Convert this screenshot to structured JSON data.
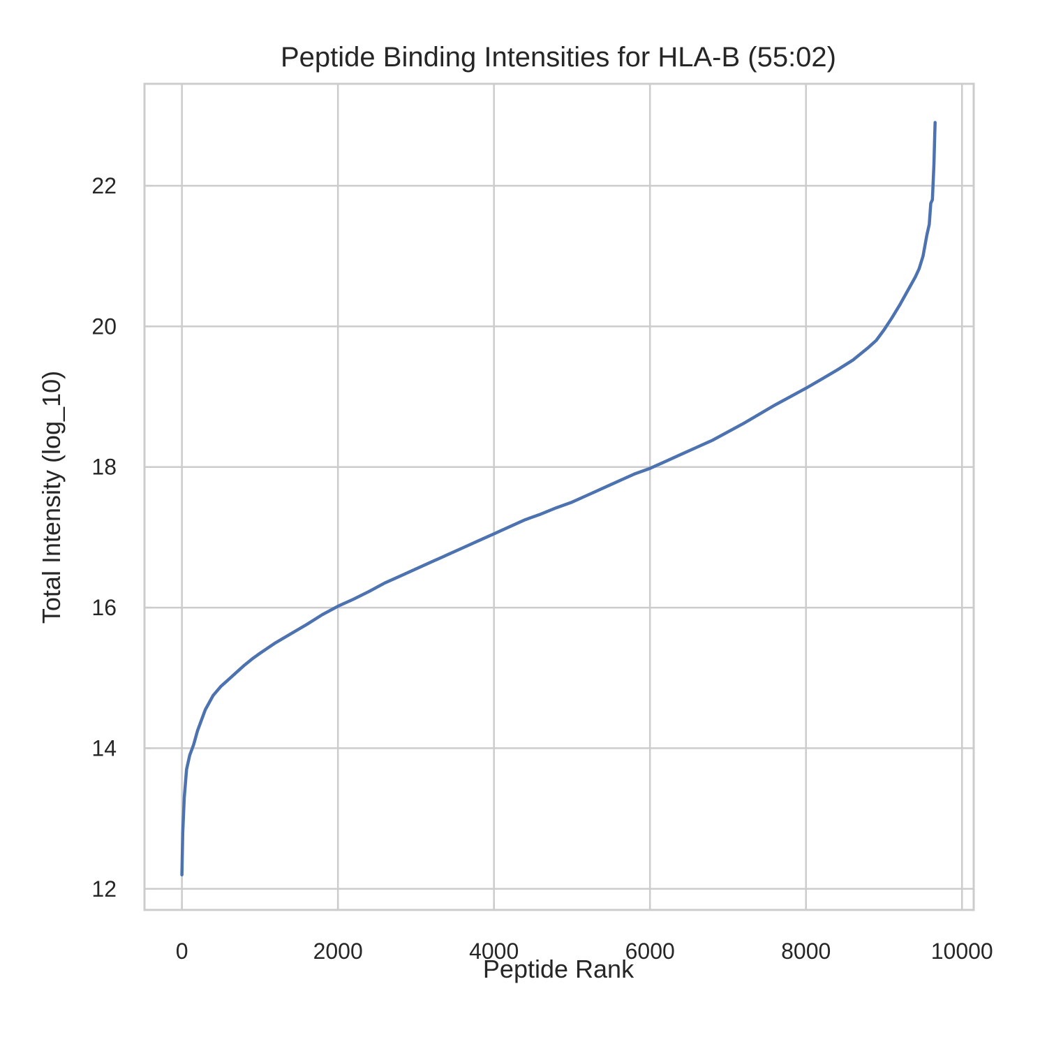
{
  "chart_data": {
    "type": "line",
    "title": "Peptide Binding Intensities for HLA-B (55:02)",
    "xlabel": "Peptide Rank",
    "ylabel": "Total Intensity (log_10)",
    "xlim": [
      -480,
      10150
    ],
    "ylim": [
      11.7,
      23.45
    ],
    "xticks": [
      0,
      2000,
      4000,
      6000,
      8000,
      10000
    ],
    "yticks": [
      12,
      14,
      16,
      18,
      20,
      22
    ],
    "xtick_labels": [
      "0",
      "2000",
      "4000",
      "6000",
      "8000",
      "10000"
    ],
    "ytick_labels": [
      "12",
      "14",
      "16",
      "18",
      "20",
      "22"
    ],
    "grid": true,
    "series": [
      {
        "color": "#4c72b0",
        "x": [
          0,
          10,
          30,
          60,
          100,
          150,
          200,
          250,
          300,
          350,
          400,
          500,
          600,
          700,
          800,
          900,
          1000,
          1200,
          1400,
          1600,
          1800,
          2000,
          2200,
          2400,
          2600,
          2800,
          3000,
          3200,
          3400,
          3600,
          3800,
          4000,
          4200,
          4400,
          4600,
          4800,
          5000,
          5200,
          5400,
          5600,
          5800,
          6000,
          6200,
          6400,
          6600,
          6800,
          7000,
          7200,
          7400,
          7600,
          7800,
          8000,
          8200,
          8400,
          8600,
          8800,
          8900,
          9000,
          9100,
          9200,
          9300,
          9400,
          9450,
          9500,
          9550,
          9580,
          9600,
          9620,
          9640,
          9650,
          9655
        ],
        "y": [
          12.2,
          12.8,
          13.3,
          13.7,
          13.9,
          14.05,
          14.25,
          14.4,
          14.55,
          14.65,
          14.75,
          14.88,
          14.98,
          15.08,
          15.18,
          15.27,
          15.35,
          15.5,
          15.63,
          15.76,
          15.9,
          16.02,
          16.12,
          16.23,
          16.35,
          16.45,
          16.55,
          16.65,
          16.75,
          16.85,
          16.95,
          17.05,
          17.15,
          17.25,
          17.33,
          17.42,
          17.5,
          17.6,
          17.7,
          17.8,
          17.9,
          17.98,
          18.08,
          18.18,
          18.28,
          18.38,
          18.5,
          18.62,
          18.75,
          18.88,
          19.0,
          19.12,
          19.25,
          19.38,
          19.52,
          19.7,
          19.8,
          19.95,
          20.12,
          20.3,
          20.5,
          20.7,
          20.82,
          21.0,
          21.3,
          21.45,
          21.75,
          21.8,
          22.3,
          22.7,
          22.9
        ]
      }
    ]
  }
}
